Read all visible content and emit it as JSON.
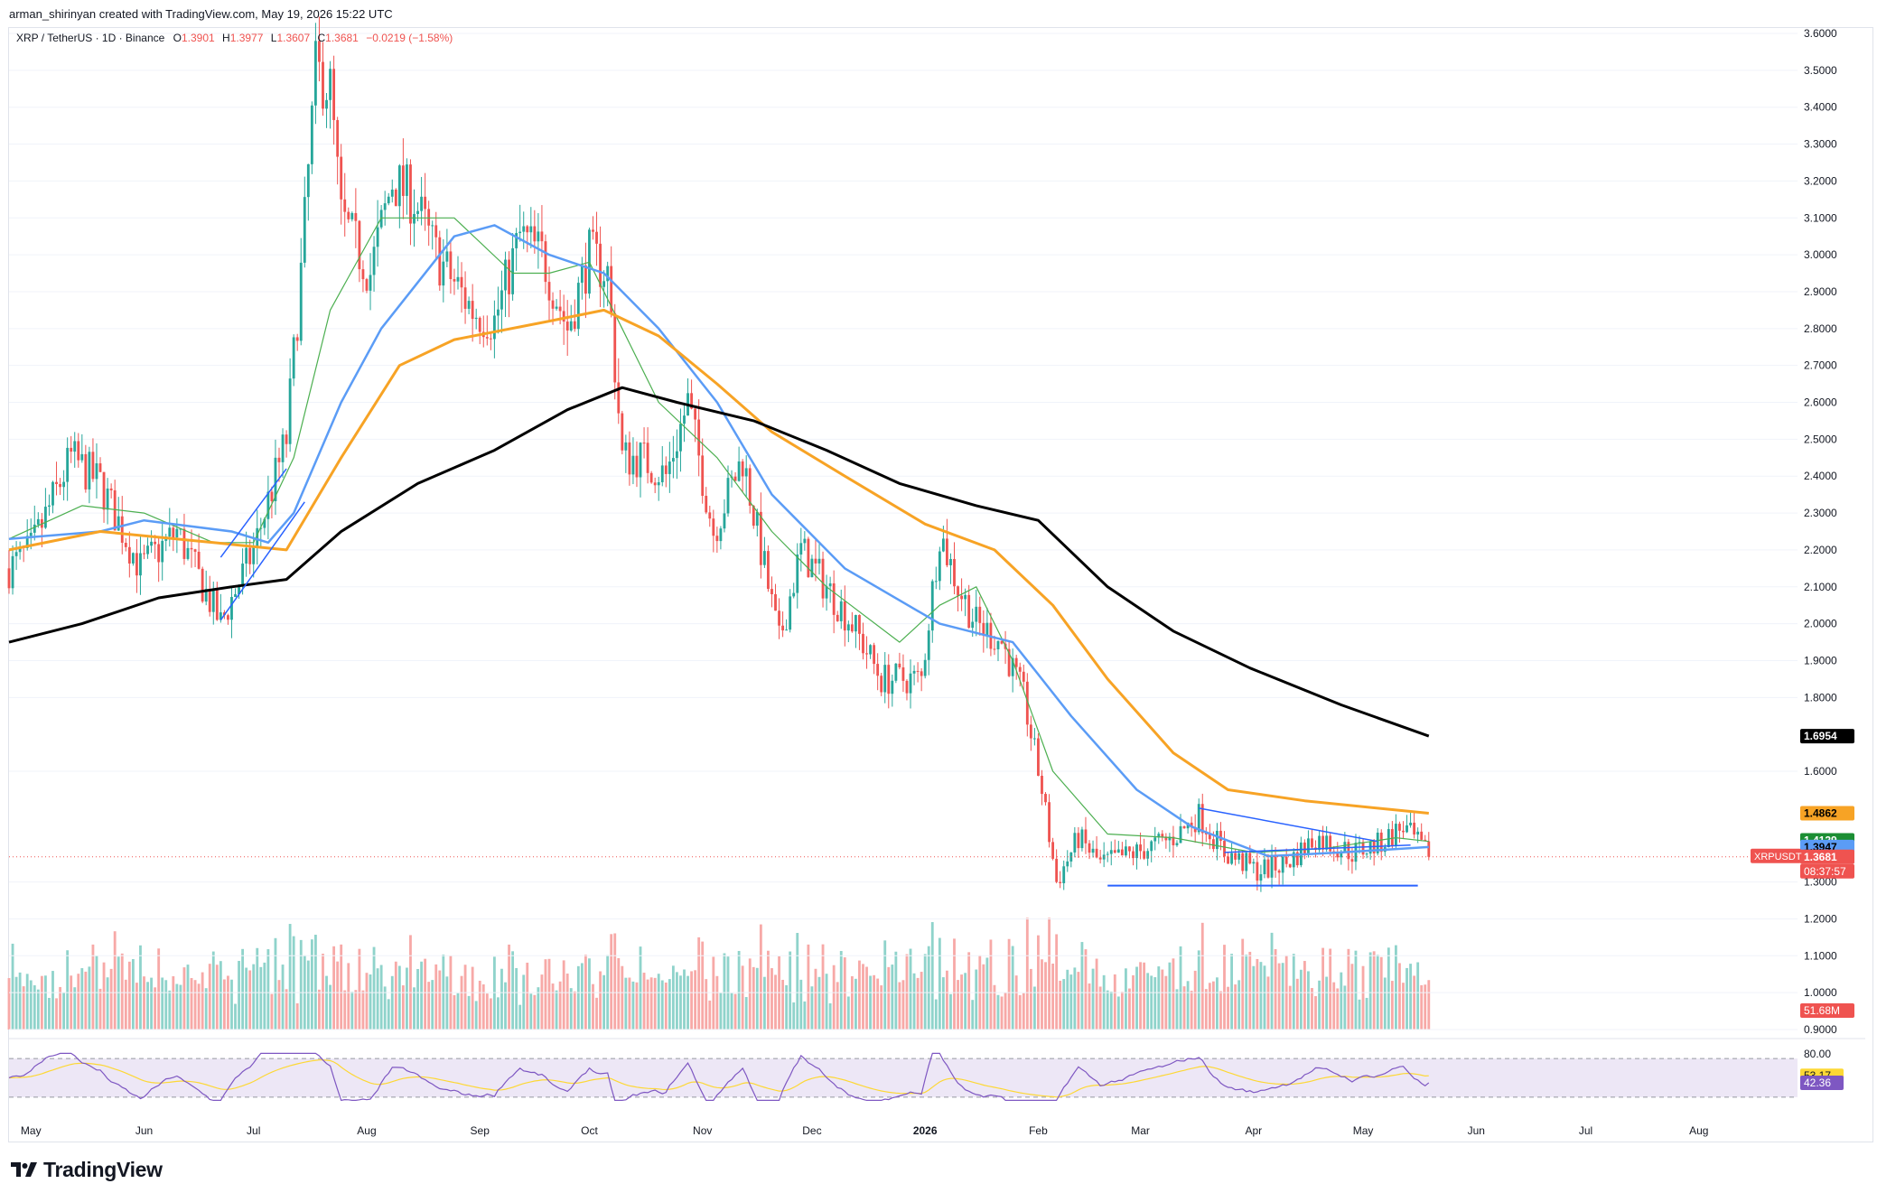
{
  "credit": "arman_shirinyan created with TradingView.com, May 19, 2026 15:22 UTC",
  "legend": {
    "symbol": "XRP / TetherUS · 1D · Binance",
    "o_label": "O",
    "o_value": "1.3901",
    "h_label": "H",
    "h_value": "1.3977",
    "l_label": "L",
    "l_value": "1.3607",
    "c_label": "C",
    "c_value": "1.3681",
    "change": "−0.0219 (−1.58%)"
  },
  "brand": {
    "logo_text": "TradingView"
  },
  "colors": {
    "up": "#26a69a",
    "down": "#ef5350",
    "vol_up": "#8fd3cb",
    "vol_down": "#f7a9a7",
    "ma_fast": "#4caf50",
    "ma_blue": "#5b9cf6",
    "ma_orange": "#f7a325",
    "ma_black": "#000000",
    "trendline": "#2962ff",
    "rsi": "#7e57c2",
    "rsi_ma": "#fdd835",
    "rsi_band": "#ede7f6"
  },
  "chart_data": {
    "type": "candlestick",
    "title": "XRP / TetherUS · 1D · Binance",
    "y_axis": {
      "ticks": [
        "3.6000",
        "3.5000",
        "3.4000",
        "3.3000",
        "3.2000",
        "3.1000",
        "3.0000",
        "2.9000",
        "2.8000",
        "2.7000",
        "2.6000",
        "2.5000",
        "2.4000",
        "2.3000",
        "2.2000",
        "2.1000",
        "2.0000",
        "1.9000",
        "1.8000",
        "1.6000",
        "1.3000",
        "1.2000",
        "1.1000",
        "1.0000",
        "0.9000"
      ],
      "range": [
        0.9,
        3.65
      ]
    },
    "x_axis": {
      "ticks": [
        "May",
        "Jun",
        "Jul",
        "Aug",
        "Sep",
        "Oct",
        "Nov",
        "Dec",
        "2026",
        "Feb",
        "Mar",
        "Apr",
        "May",
        "Jun",
        "Jul",
        "Aug"
      ]
    },
    "price_path": [
      [
        "2025-04-25",
        2.15
      ],
      [
        "2025-05-01",
        2.2
      ],
      [
        "2025-05-12",
        2.45
      ],
      [
        "2025-05-20",
        2.38
      ],
      [
        "2025-05-31",
        2.15
      ],
      [
        "2025-06-10",
        2.25
      ],
      [
        "2025-06-22",
        2.0
      ],
      [
        "2025-07-01",
        2.2
      ],
      [
        "2025-07-10",
        2.5
      ],
      [
        "2025-07-14",
        2.95
      ],
      [
        "2025-07-18",
        3.5
      ],
      [
        "2025-07-22",
        3.45
      ],
      [
        "2025-07-25",
        3.1
      ],
      [
        "2025-08-02",
        2.95
      ],
      [
        "2025-08-08",
        3.2
      ],
      [
        "2025-08-14",
        3.15
      ],
      [
        "2025-08-20",
        3.0
      ],
      [
        "2025-08-30",
        2.85
      ],
      [
        "2025-09-05",
        2.82
      ],
      [
        "2025-09-12",
        3.05
      ],
      [
        "2025-09-18",
        3.0
      ],
      [
        "2025-09-25",
        2.8
      ],
      [
        "2025-10-01",
        3.0
      ],
      [
        "2025-10-06",
        2.95
      ],
      [
        "2025-10-10",
        2.45
      ],
      [
        "2025-10-15",
        2.45
      ],
      [
        "2025-10-22",
        2.4
      ],
      [
        "2025-10-28",
        2.6
      ],
      [
        "2025-11-04",
        2.25
      ],
      [
        "2025-11-12",
        2.45
      ],
      [
        "2025-11-18",
        2.15
      ],
      [
        "2025-11-22",
        1.95
      ],
      [
        "2025-11-28",
        2.2
      ],
      [
        "2025-12-05",
        2.1
      ],
      [
        "2025-12-12",
        2.0
      ],
      [
        "2025-12-20",
        1.85
      ],
      [
        "2025-12-31",
        1.85
      ],
      [
        "2026-01-05",
        2.25
      ],
      [
        "2026-01-10",
        2.1
      ],
      [
        "2026-01-15",
        2.0
      ],
      [
        "2026-01-22",
        1.95
      ],
      [
        "2026-01-28",
        1.8
      ],
      [
        "2026-02-02",
        1.55
      ],
      [
        "2026-02-06",
        1.3
      ],
      [
        "2026-02-12",
        1.42
      ],
      [
        "2026-02-18",
        1.35
      ],
      [
        "2026-02-28",
        1.38
      ],
      [
        "2026-03-10",
        1.42
      ],
      [
        "2026-03-17",
        1.48
      ],
      [
        "2026-03-24",
        1.38
      ],
      [
        "2026-04-02",
        1.33
      ],
      [
        "2026-04-10",
        1.35
      ],
      [
        "2026-04-18",
        1.42
      ],
      [
        "2026-04-28",
        1.38
      ],
      [
        "2026-05-05",
        1.4
      ],
      [
        "2026-05-12",
        1.45
      ],
      [
        "2026-05-19",
        1.3681
      ]
    ],
    "moving_averages": [
      {
        "points": [
          [
            "2025-04-25",
            2.23
          ],
          [
            "2025-05-15",
            2.32
          ],
          [
            "2025-06-01",
            2.3
          ],
          [
            "2025-06-20",
            2.22
          ],
          [
            "2025-07-01",
            2.22
          ],
          [
            "2025-07-12",
            2.45
          ],
          [
            "2025-07-22",
            2.85
          ],
          [
            "2025-08-05",
            3.1
          ],
          [
            "2025-08-25",
            3.1
          ],
          [
            "2025-09-10",
            2.95
          ],
          [
            "2025-09-20",
            2.95
          ],
          [
            "2025-10-01",
            2.98
          ],
          [
            "2025-10-10",
            2.8
          ],
          [
            "2025-10-20",
            2.6
          ],
          [
            "2025-11-05",
            2.45
          ],
          [
            "2025-11-20",
            2.25
          ],
          [
            "2025-12-05",
            2.1
          ],
          [
            "2025-12-25",
            1.95
          ],
          [
            "2026-01-05",
            2.05
          ],
          [
            "2026-01-15",
            2.1
          ],
          [
            "2026-01-25",
            1.9
          ],
          [
            "2026-02-05",
            1.6
          ],
          [
            "2026-02-20",
            1.43
          ],
          [
            "2026-03-10",
            1.42
          ],
          [
            "2026-04-01",
            1.38
          ],
          [
            "2026-04-20",
            1.39
          ],
          [
            "2026-05-10",
            1.42
          ],
          [
            "2026-05-19",
            1.41
          ]
        ]
      },
      {
        "points": [
          [
            "2025-04-25",
            2.23
          ],
          [
            "2025-05-20",
            2.25
          ],
          [
            "2025-06-01",
            2.28
          ],
          [
            "2025-06-25",
            2.25
          ],
          [
            "2025-07-05",
            2.22
          ],
          [
            "2025-07-12",
            2.3
          ],
          [
            "2025-07-25",
            2.6
          ],
          [
            "2025-08-05",
            2.8
          ],
          [
            "2025-08-25",
            3.05
          ],
          [
            "2025-09-05",
            3.08
          ],
          [
            "2025-09-20",
            3.0
          ],
          [
            "2025-10-05",
            2.95
          ],
          [
            "2025-10-20",
            2.8
          ],
          [
            "2025-11-05",
            2.6
          ],
          [
            "2025-11-20",
            2.35
          ],
          [
            "2025-12-10",
            2.15
          ],
          [
            "2026-01-05",
            2.0
          ],
          [
            "2026-01-25",
            1.95
          ],
          [
            "2026-02-10",
            1.75
          ],
          [
            "2026-02-28",
            1.55
          ],
          [
            "2026-03-15",
            1.45
          ],
          [
            "2026-04-05",
            1.37
          ],
          [
            "2026-04-25",
            1.38
          ],
          [
            "2026-05-19",
            1.3947
          ]
        ]
      },
      {
        "points": [
          [
            "2025-04-25",
            2.2
          ],
          [
            "2025-05-20",
            2.25
          ],
          [
            "2025-06-20",
            2.22
          ],
          [
            "2025-07-10",
            2.2
          ],
          [
            "2025-07-25",
            2.45
          ],
          [
            "2025-08-10",
            2.7
          ],
          [
            "2025-08-25",
            2.77
          ],
          [
            "2025-09-20",
            2.82
          ],
          [
            "2025-10-05",
            2.85
          ],
          [
            "2025-10-20",
            2.78
          ],
          [
            "2025-11-05",
            2.65
          ],
          [
            "2025-11-20",
            2.52
          ],
          [
            "2025-12-10",
            2.4
          ],
          [
            "2026-01-01",
            2.27
          ],
          [
            "2026-01-20",
            2.2
          ],
          [
            "2026-02-05",
            2.05
          ],
          [
            "2026-02-20",
            1.85
          ],
          [
            "2026-03-10",
            1.65
          ],
          [
            "2026-03-25",
            1.55
          ],
          [
            "2026-04-15",
            1.52
          ],
          [
            "2026-05-05",
            1.5
          ],
          [
            "2026-05-19",
            1.4862
          ]
        ]
      },
      {
        "points": [
          [
            "2025-04-25",
            1.95
          ],
          [
            "2025-05-15",
            2.0
          ],
          [
            "2025-06-05",
            2.07
          ],
          [
            "2025-06-25",
            2.1
          ],
          [
            "2025-07-10",
            2.12
          ],
          [
            "2025-07-25",
            2.25
          ],
          [
            "2025-08-15",
            2.38
          ],
          [
            "2025-09-05",
            2.47
          ],
          [
            "2025-09-25",
            2.58
          ],
          [
            "2025-10-10",
            2.64
          ],
          [
            "2025-10-25",
            2.6
          ],
          [
            "2025-11-15",
            2.55
          ],
          [
            "2025-12-05",
            2.47
          ],
          [
            "2025-12-25",
            2.38
          ],
          [
            "2026-01-15",
            2.32
          ],
          [
            "2026-02-01",
            2.28
          ],
          [
            "2026-02-20",
            2.1
          ],
          [
            "2026-03-10",
            1.98
          ],
          [
            "2026-03-31",
            1.88
          ],
          [
            "2026-04-25",
            1.78
          ],
          [
            "2026-05-19",
            1.6954
          ]
        ]
      }
    ],
    "horizontal_line": {
      "value": 1.29,
      "from": "2026-02-20",
      "to": "2026-05-16"
    },
    "trendlines": [
      {
        "from": [
          "2026-03-17",
          1.5
        ],
        "to": [
          "2026-05-05",
          1.41
        ]
      },
      {
        "from": [
          "2026-03-24",
          1.38
        ],
        "to": [
          "2026-05-14",
          1.4
        ]
      },
      {
        "from": [
          "2025-06-22",
          2.18
        ],
        "to": [
          "2025-07-10",
          2.42
        ]
      },
      {
        "from": [
          "2025-06-22",
          2.01
        ],
        "to": [
          "2025-07-15",
          2.33
        ]
      }
    ],
    "price_labels": [
      {
        "text": "1.6954",
        "value": 1.6954,
        "bg": "#000000",
        "fg": "#ffffff"
      },
      {
        "text": "1.4862",
        "value": 1.4862,
        "bg": "#f7a325",
        "fg": "#000000"
      },
      {
        "text": "1.4129",
        "value": 1.4129,
        "bg": "#1b8e33",
        "fg": "#ffffff"
      },
      {
        "text": "1.3947",
        "value": 1.3947,
        "bg": "#5b9cf6",
        "fg": "#000000"
      },
      {
        "text": "1.3681",
        "value": 1.3681,
        "bg": "#ef5350",
        "fg": "#ffffff"
      }
    ],
    "last_price": {
      "symbol_tag": "XRPUSDT",
      "value": "1.3681",
      "countdown": "08:37:57"
    },
    "volume": {
      "last_label": "51.68M"
    },
    "rsi": {
      "upper_band": 80.0,
      "lower_band": 20.0,
      "labels": [
        {
          "text": "80.00",
          "value": 80.0,
          "bg": "#ffffff",
          "fg": "#131722"
        },
        {
          "text": "53.17",
          "value": 53.17,
          "bg": "#fdd835",
          "fg": "#131722"
        },
        {
          "text": "42.36",
          "value": 42.36,
          "bg": "#7e57c2",
          "fg": "#ffffff"
        }
      ]
    }
  }
}
